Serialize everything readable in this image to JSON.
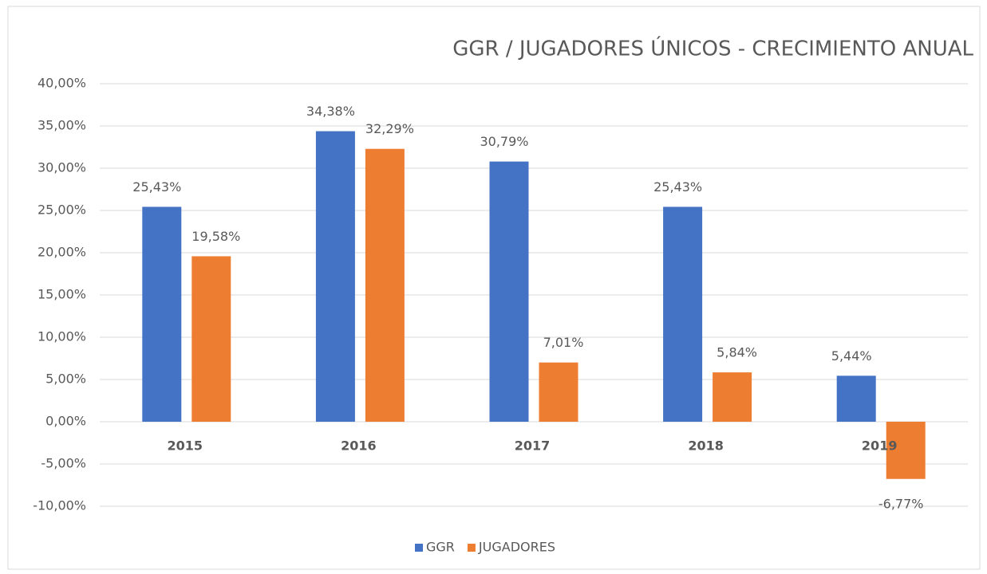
{
  "chart_data": {
    "type": "bar",
    "title": "GGR / JUGADORES ÚNICOS - CRECIMIENTO ANUAL",
    "categories": [
      "2015",
      "2016",
      "2017",
      "2018",
      "2019"
    ],
    "series": [
      {
        "name": "GGR",
        "color": "#4472c4",
        "values": [
          25.43,
          34.38,
          30.79,
          25.43,
          5.44
        ],
        "value_labels": [
          "25,43%",
          "34,38%",
          "30,79%",
          "25,43%",
          "5,44%"
        ]
      },
      {
        "name": "JUGADORES",
        "color": "#ed7d31",
        "values": [
          19.58,
          32.29,
          7.01,
          5.84,
          -6.77
        ],
        "value_labels": [
          "19,58%",
          "32,29%",
          "7,01%",
          "5,84%",
          "-6,77%"
        ]
      }
    ],
    "ylim": [
      -10,
      40
    ],
    "yticks": [
      {
        "value": -10,
        "label": "-10,00%"
      },
      {
        "value": -5,
        "label": "-5,00%"
      },
      {
        "value": 0,
        "label": "0,00%"
      },
      {
        "value": 5,
        "label": "5,00%"
      },
      {
        "value": 10,
        "label": "10,00%"
      },
      {
        "value": 15,
        "label": "15,00%"
      },
      {
        "value": 20,
        "label": "20,00%"
      },
      {
        "value": 25,
        "label": "25,00%"
      },
      {
        "value": 30,
        "label": "30,00%"
      },
      {
        "value": 35,
        "label": "35,00%"
      },
      {
        "value": 40,
        "label": "40,00%"
      }
    ],
    "grid": true,
    "legend": "bottom"
  }
}
